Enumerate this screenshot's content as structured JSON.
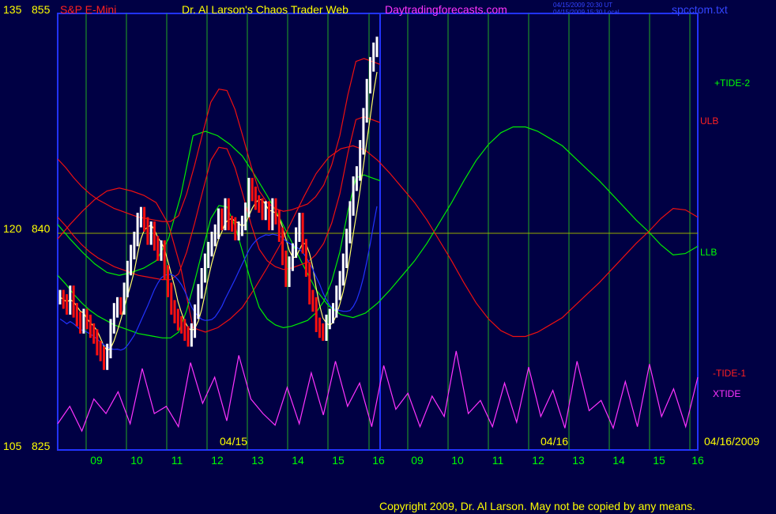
{
  "header": {
    "instrument": "S&P E-Mini",
    "title": "Dr. Al Larson's Chaos Trader Web",
    "site": "Daytradingforecasts.com",
    "timestamp_ut": "04/15/2009 20:30 UT",
    "timestamp_local": "04/15/2009 15:30 Local",
    "filename": "spcctom.txt"
  },
  "footer": {
    "copyright": "Copyright 2009, Dr. Al Larson. May not be copied by any means."
  },
  "colors": {
    "background": "#000044",
    "frame": "#2233ff",
    "price_up": "#ffffff",
    "price_down": "#ff1010",
    "tide_green": "#00ee00",
    "ulb_red": "#ee1010",
    "xtide": "#ff33ff",
    "moving_avg_yellow": "#ffff66",
    "moving_avg_blue": "#2233ff",
    "gridline": "#22aa22",
    "center_line": "#99aa00"
  },
  "chart_data": {
    "type": "line",
    "title": "S&P E-Mini",
    "y_left_outer_ticks": [
      "135",
      "120",
      "105"
    ],
    "y_left_inner_ticks": [
      "855",
      "840",
      "825"
    ],
    "ylim": [
      825,
      855
    ],
    "x_hour_ticks": [
      "09",
      "10",
      "11",
      "12",
      "13",
      "14",
      "15",
      "16",
      "09",
      "10",
      "11",
      "12",
      "13",
      "14",
      "15",
      "16"
    ],
    "date_labels": [
      "04/15",
      "04/16",
      "04/16/2009"
    ],
    "series_labels": [
      {
        "name": "+TIDE-2",
        "color": "#00ff00"
      },
      {
        "name": "ULB",
        "color": "#ff2020"
      },
      {
        "name": "LLB",
        "color": "#00ff00"
      },
      {
        "name": "-TIDE-1",
        "color": "#ff2020"
      },
      {
        "name": "XTIDE",
        "color": "#ff33ff"
      }
    ],
    "price_close_0415": [
      835.5,
      835.2,
      834.8,
      835.8,
      834.6,
      834.0,
      833.5,
      834.2,
      833.8,
      833.2,
      832.8,
      832.0,
      831.6,
      831.0,
      831.8,
      833.5,
      834.6,
      835.0,
      834.8,
      836.0,
      837.5,
      838.6,
      839.5,
      840.8,
      841.2,
      840.5,
      839.6,
      840.2,
      839.2,
      838.5,
      838.9,
      837.2,
      836.0,
      834.8,
      834.2,
      833.7,
      833.5,
      833.0,
      832.6,
      833.2,
      834.5,
      835.9,
      837.0,
      838.0,
      838.8,
      839.5,
      840.0,
      841.1,
      840.6,
      841.8,
      840.6,
      840.5,
      839.9,
      840.2,
      840.6,
      841.5,
      843.2,
      842.6,
      842.0,
      841.8,
      841.3,
      841.6,
      840.6,
      841.8,
      841.0,
      839.8,
      838.2,
      836.7,
      837.8,
      838.7,
      839.8,
      840.8,
      839.0,
      837.4,
      835.5,
      835.0,
      833.6,
      833.2,
      833.0,
      833.8,
      834.2,
      834.6,
      835.8,
      836.8,
      838.0,
      839.7,
      841.6,
      843.3,
      844.0,
      845.8,
      848.0,
      850.0,
      851.5,
      852.5,
      852.9
    ],
    "tide_plus2": [
      840.5,
      839.5,
      838.6,
      837.8,
      837.2,
      837.0,
      837.2,
      837.5,
      838.0,
      839.5,
      842.5,
      846.6,
      846.9,
      846.6,
      846.0,
      845.2,
      843.9,
      842.5,
      841.0,
      839.3,
      837.6,
      836.0,
      834.9,
      834.3,
      834.1,
      834.4,
      835.1,
      836.0,
      837.0,
      838.0,
      839.2,
      840.6,
      842.0,
      843.5,
      844.9,
      846.0,
      846.8,
      847.2,
      847.2,
      846.9,
      846.4,
      845.9,
      845.1,
      844.3,
      843.5,
      842.6,
      841.7,
      840.8,
      840.0,
      839.1,
      838.4,
      838.5,
      839.0
    ],
    "ulb": [
      845.0,
      844.4,
      843.7,
      843.1,
      842.6,
      842.2,
      841.9,
      841.6,
      841.4,
      841.2,
      841.0,
      840.9,
      840.8,
      840.7,
      840.7,
      841.1,
      842.6,
      844.6,
      846.8,
      848.9,
      849.8,
      849.7,
      848.4,
      846.5,
      844.5,
      842.8,
      842.0,
      841.6,
      841.4,
      841.5,
      841.7,
      841.9,
      842.4,
      843.2,
      844.6,
      846.6,
      849.4,
      851.7,
      851.9,
      851.7,
      851.5
    ],
    "xtide": [
      826.8,
      828.0,
      826.3,
      828.5,
      827.5,
      829.0,
      826.8,
      830.6,
      827.5,
      828.0,
      826.6,
      831.0,
      828.2,
      830.0,
      827.0,
      831.5,
      828.5,
      827.5,
      826.7,
      829.3,
      826.8,
      830.3,
      827.4,
      831.1,
      828.0,
      829.6,
      826.6,
      830.8,
      827.8,
      828.9,
      826.6,
      828.7,
      827.3,
      831.8,
      827.5,
      828.4,
      826.6,
      829.6,
      826.9,
      830.7,
      827.3,
      829.1,
      826.5,
      831.1,
      827.7,
      828.4,
      826.5,
      829.7,
      826.6,
      830.9,
      827.3,
      829.2,
      826.6,
      830.0
    ]
  }
}
